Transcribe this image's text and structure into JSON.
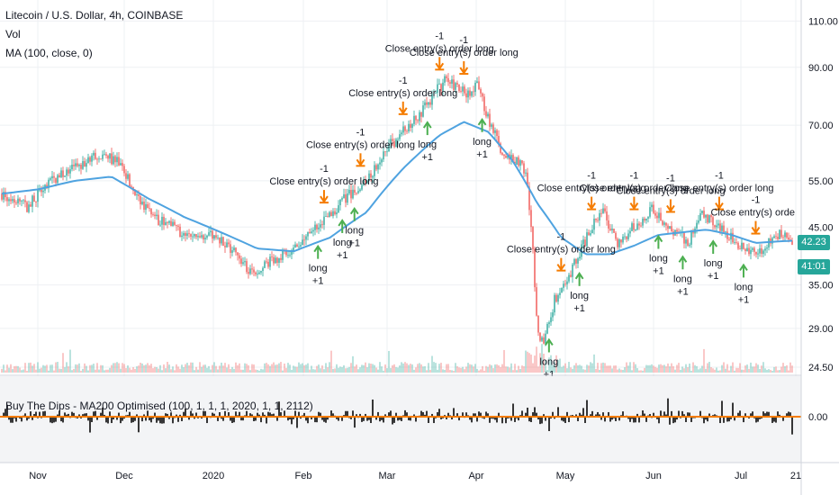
{
  "legend": {
    "title": "Litecoin / U.S. Dollar, 4h, COINBASE",
    "vol": "Vol",
    "ma": "MA (100, close, 0)",
    "osc": "Buy The Dips - MA200 Optimised (100, 1, 1, 1, 2020, 1, 1, 2112)"
  },
  "badges": {
    "last_price": "42.23",
    "countdown": "41:01"
  },
  "colors": {
    "up": "#26a69a",
    "down": "#ef5350",
    "ma": "#4fa3e0",
    "long_arrow": "#4caf50",
    "close_arrow": "#f57c00",
    "osc_bar": "#222222",
    "osc_line": "#f57c00"
  },
  "chart_data": [
    {
      "type": "candlestick",
      "title": "Litecoin / U.S. Dollar, 4h, COINBASE",
      "y_ticks": [
        "110.00",
        "90.00",
        "70.00",
        "55.00",
        "45.00",
        "35.00",
        "29.00",
        "24.50"
      ],
      "x_ticks": [
        "Nov",
        "Dec",
        "2020",
        "Feb",
        "Mar",
        "Apr",
        "May",
        "Jun",
        "Jul",
        "21"
      ],
      "ylim": [
        24.5,
        115
      ],
      "y_scale": "log",
      "price_path": [
        [
          0,
          52
        ],
        [
          4,
          49
        ],
        [
          8,
          55
        ],
        [
          12,
          58
        ],
        [
          16,
          62
        ],
        [
          19,
          60
        ],
        [
          22,
          52
        ],
        [
          25,
          47
        ],
        [
          28,
          45
        ],
        [
          31,
          43
        ],
        [
          34,
          44
        ],
        [
          37,
          42
        ],
        [
          40,
          38
        ],
        [
          42,
          36
        ],
        [
          44,
          39
        ],
        [
          47,
          40
        ],
        [
          49,
          42
        ],
        [
          52,
          45
        ],
        [
          55,
          49
        ],
        [
          58,
          53
        ],
        [
          61,
          57
        ],
        [
          63,
          63
        ],
        [
          65,
          66
        ],
        [
          67,
          70
        ],
        [
          69,
          74
        ],
        [
          71,
          80
        ],
        [
          73,
          85
        ],
        [
          75,
          83
        ],
        [
          77,
          79
        ],
        [
          78,
          84
        ],
        [
          80,
          72
        ],
        [
          82,
          63
        ],
        [
          84,
          61
        ],
        [
          86,
          58
        ],
        [
          87,
          47
        ],
        [
          88,
          29
        ],
        [
          89,
          27
        ],
        [
          91,
          33
        ],
        [
          93,
          36
        ],
        [
          95,
          40
        ],
        [
          97,
          45
        ],
        [
          99,
          48
        ],
        [
          101,
          42
        ],
        [
          103,
          44
        ],
        [
          105,
          46
        ],
        [
          107,
          49
        ],
        [
          109,
          45
        ],
        [
          111,
          44
        ],
        [
          113,
          42
        ],
        [
          115,
          48
        ],
        [
          117,
          46
        ],
        [
          119,
          44
        ],
        [
          121,
          42
        ],
        [
          123,
          41
        ],
        [
          125,
          40
        ],
        [
          127,
          44
        ],
        [
          129,
          43
        ],
        [
          130,
          42.2
        ]
      ],
      "ma_path": [
        [
          0,
          52
        ],
        [
          6,
          53
        ],
        [
          12,
          55
        ],
        [
          18,
          56
        ],
        [
          24,
          51
        ],
        [
          30,
          47
        ],
        [
          36,
          44
        ],
        [
          42,
          41
        ],
        [
          48,
          40.5
        ],
        [
          54,
          43
        ],
        [
          60,
          48
        ],
        [
          66,
          58
        ],
        [
          72,
          67
        ],
        [
          76,
          71
        ],
        [
          80,
          68
        ],
        [
          84,
          60
        ],
        [
          88,
          50
        ],
        [
          92,
          43
        ],
        [
          96,
          40
        ],
        [
          100,
          40
        ],
        [
          104,
          41.5
        ],
        [
          108,
          43.5
        ],
        [
          112,
          44
        ],
        [
          116,
          44.5
        ],
        [
          120,
          43.5
        ],
        [
          124,
          42
        ],
        [
          128,
          42.3
        ],
        [
          130,
          42.4
        ]
      ],
      "long_entries": [
        {
          "t": 52,
          "label": "long",
          "qty": "+1"
        },
        {
          "t": 56,
          "label": "long",
          "qty": "+1"
        },
        {
          "t": 58,
          "label": "long",
          "qty": "+1"
        },
        {
          "t": 70,
          "label": "long",
          "qty": "+1"
        },
        {
          "t": 79,
          "label": "long",
          "qty": "+1"
        },
        {
          "t": 90,
          "label": "long",
          "qty": "+1"
        },
        {
          "t": 95,
          "label": "long",
          "qty": "+1"
        },
        {
          "t": 108,
          "label": "long",
          "qty": "+1"
        },
        {
          "t": 112,
          "label": "long",
          "qty": "+1"
        },
        {
          "t": 117,
          "label": "long",
          "qty": "+1"
        },
        {
          "t": 122,
          "label": "long",
          "qty": "+1"
        }
      ],
      "close_entries": [
        {
          "t": 53,
          "label": "Close entry(s) order long",
          "qty": "-1"
        },
        {
          "t": 59,
          "label": "Close entry(s) order long",
          "qty": "-1"
        },
        {
          "t": 66,
          "label": "Close entry(s) order long",
          "qty": "-1"
        },
        {
          "t": 72,
          "label": "Close entry(s) order long",
          "qty": "-1"
        },
        {
          "t": 76,
          "label": "Close entry(s) order long",
          "qty": "-1"
        },
        {
          "t": 92,
          "label": "Close entry(s) order long",
          "qty": "-1"
        },
        {
          "t": 97,
          "label": "Close entry(s) order long",
          "qty": "-1"
        },
        {
          "t": 104,
          "label": "Close entry(s) order long",
          "qty": "-1"
        },
        {
          "t": 110,
          "label": "Close entry(s) order long",
          "qty": "-1"
        },
        {
          "t": 118,
          "label": "Close entry(s) order long",
          "qty": "-1"
        },
        {
          "t": 124,
          "label": "Close entry(s) orde",
          "qty": "-1"
        }
      ]
    },
    {
      "type": "bar",
      "title": "Buy The Dips - MA200 Optimised (100, 1, 1, 1, 2020, 1, 1, 2112)",
      "y_ticks": [
        "0.00"
      ],
      "zero_line": 0
    }
  ]
}
